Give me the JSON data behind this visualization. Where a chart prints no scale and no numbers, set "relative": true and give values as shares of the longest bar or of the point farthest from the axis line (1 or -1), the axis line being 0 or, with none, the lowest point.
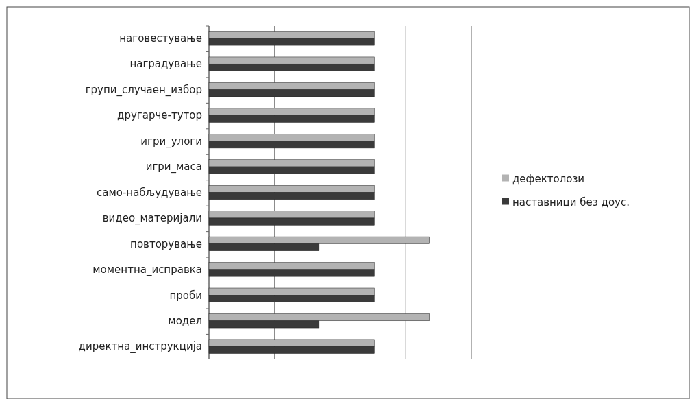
{
  "chart_data": {
    "type": "bar",
    "orientation": "horizontal",
    "relative": true,
    "grid": "x",
    "legend": "right",
    "categories": [
      "наговестување",
      "наградување",
      "групи_случаен_избор",
      "другарче-тутор",
      "игри_улоги",
      "игри_маса",
      "само-набљудување",
      "видео_материјали",
      "повторување",
      "моментна_исправка",
      "проби",
      "модел",
      "директна_инструкција"
    ],
    "series": [
      {
        "name": "дефектолози",
        "color": "#b3b3b3",
        "values": [
          0.75,
          0.75,
          0.75,
          0.75,
          0.75,
          0.75,
          0.75,
          0.75,
          1,
          0.75,
          0.75,
          1,
          0.75
        ]
      },
      {
        "name": "наставници без доус.",
        "color": "#3a3a3a",
        "values": [
          0.75,
          0.75,
          0.75,
          0.75,
          0.75,
          0.75,
          0.75,
          0.75,
          0.5,
          0.75,
          0.75,
          0.5,
          0.75
        ]
      }
    ]
  }
}
